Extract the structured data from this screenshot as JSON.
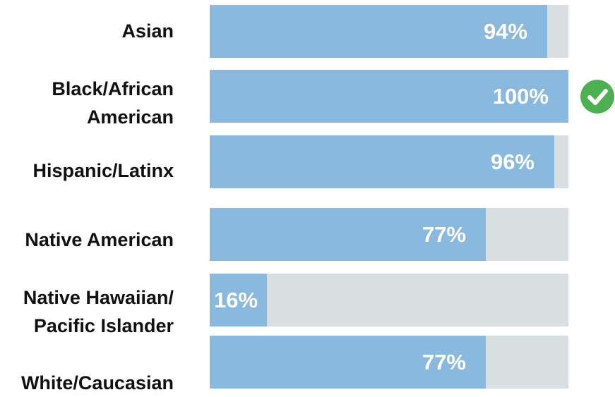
{
  "chart_data": {
    "type": "bar",
    "orientation": "horizontal",
    "categories": [
      "Asian",
      "Black/African American",
      "Hispanic/Latinx",
      "Native American",
      "Native Hawaiian/ Pacific Islander",
      "White/Caucasian"
    ],
    "category_lines": [
      [
        "Asian"
      ],
      [
        "Black/African",
        "American"
      ],
      [
        "Hispanic/Latinx"
      ],
      [
        "Native American"
      ],
      [
        "Native Hawaiian/",
        "Pacific Islander"
      ],
      [
        "White/Caucasian"
      ]
    ],
    "values": [
      94,
      100,
      96,
      77,
      16,
      77
    ],
    "value_labels": [
      "94%",
      "100%",
      "96%",
      "77%",
      "16%",
      "77%"
    ],
    "xlim": [
      0,
      100
    ],
    "highlight": {
      "category_index": 1,
      "icon": "check-circle-icon"
    },
    "grid": false,
    "legend": "none",
    "title": "",
    "xlabel": "",
    "ylabel": ""
  },
  "colors": {
    "bar_fill": "#8ab9e0",
    "bar_track": "#d9dee1",
    "value_label": "#ffffff",
    "category_label": "#111111",
    "check_badge": "#4caf50"
  }
}
